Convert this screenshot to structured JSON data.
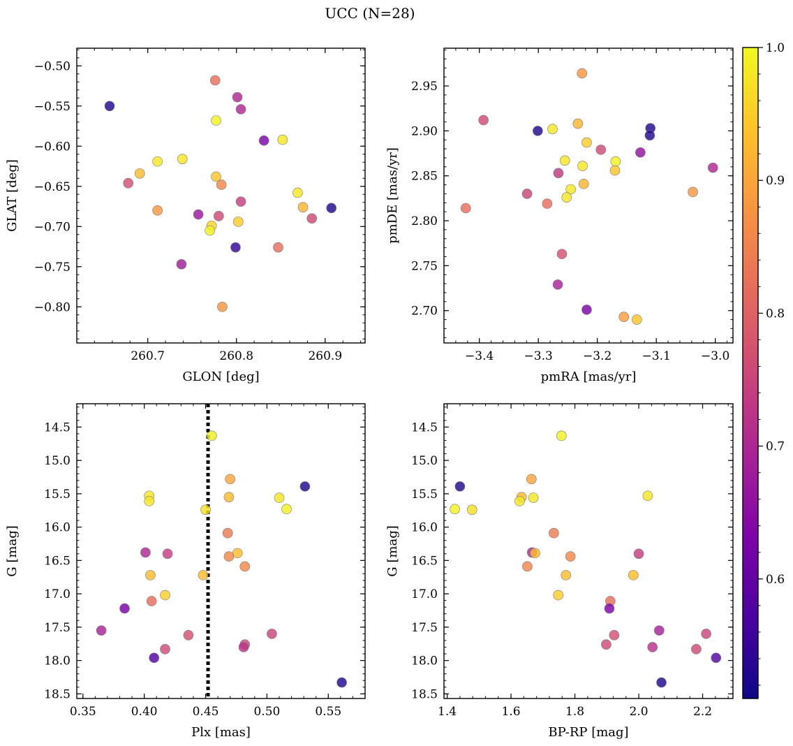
{
  "figure": {
    "title": "UCC (N=28)"
  },
  "colorbar": {
    "colormap": "plasma",
    "range": [
      0.51,
      1.0
    ],
    "ticks": [
      0.6,
      0.7,
      0.8,
      0.9,
      1.0
    ],
    "tick_labels": [
      "0.6",
      "0.7",
      "0.8",
      "0.9",
      "1.0"
    ],
    "label": ""
  },
  "chart_data": [
    {
      "type": "scatter",
      "title": "",
      "xlabel": "GLON [deg]",
      "ylabel": "GLAT [deg]",
      "xlim": [
        260.62,
        260.945
      ],
      "ylim": [
        -0.845,
        -0.478
      ],
      "y_inverted": false,
      "xticks": [
        260.7,
        260.8,
        260.9
      ],
      "xtick_labels": [
        "260.7",
        "260.8",
        "260.9"
      ],
      "yticks": [
        -0.8,
        -0.75,
        -0.7,
        -0.65,
        -0.6,
        -0.55,
        -0.5
      ],
      "ytick_labels": [
        "−0.80",
        "−0.75",
        "−0.70",
        "−0.65",
        "−0.60",
        "−0.55",
        "−0.50"
      ],
      "points": [
        {
          "x": 260.657,
          "y": -0.55,
          "c": 0.53
        },
        {
          "x": 260.776,
          "y": -0.518,
          "c": 0.82
        },
        {
          "x": 260.801,
          "y": -0.539,
          "c": 0.7
        },
        {
          "x": 260.805,
          "y": -0.554,
          "c": 0.7
        },
        {
          "x": 260.777,
          "y": -0.568,
          "c": 0.99
        },
        {
          "x": 260.831,
          "y": -0.593,
          "c": 0.63
        },
        {
          "x": 260.852,
          "y": -0.592,
          "c": 0.98
        },
        {
          "x": 260.739,
          "y": -0.616,
          "c": 0.98
        },
        {
          "x": 260.711,
          "y": -0.619,
          "c": 0.98
        },
        {
          "x": 260.691,
          "y": -0.634,
          "c": 0.93
        },
        {
          "x": 260.777,
          "y": -0.638,
          "c": 0.94
        },
        {
          "x": 260.678,
          "y": -0.646,
          "c": 0.77
        },
        {
          "x": 260.783,
          "y": -0.648,
          "c": 0.86
        },
        {
          "x": 260.869,
          "y": -0.658,
          "c": 0.98
        },
        {
          "x": 260.805,
          "y": -0.669,
          "c": 0.74
        },
        {
          "x": 260.875,
          "y": -0.676,
          "c": 0.92
        },
        {
          "x": 260.907,
          "y": -0.677,
          "c": 0.53
        },
        {
          "x": 260.711,
          "y": -0.68,
          "c": 0.88
        },
        {
          "x": 260.757,
          "y": -0.685,
          "c": 0.67
        },
        {
          "x": 260.78,
          "y": -0.687,
          "c": 0.76
        },
        {
          "x": 260.885,
          "y": -0.69,
          "c": 0.76
        },
        {
          "x": 260.802,
          "y": -0.694,
          "c": 0.95
        },
        {
          "x": 260.772,
          "y": -0.699,
          "c": 0.96
        },
        {
          "x": 260.77,
          "y": -0.705,
          "c": 0.99
        },
        {
          "x": 260.799,
          "y": -0.726,
          "c": 0.55
        },
        {
          "x": 260.847,
          "y": -0.726,
          "c": 0.82
        },
        {
          "x": 260.738,
          "y": -0.747,
          "c": 0.68
        },
        {
          "x": 260.784,
          "y": -0.8,
          "c": 0.88
        }
      ]
    },
    {
      "type": "scatter",
      "title": "",
      "xlabel": "pmRA [mas/yr]",
      "ylabel": "pmDE [mas/yr]",
      "xlim": [
        -3.46,
        -2.97
      ],
      "ylim": [
        2.664,
        2.992
      ],
      "y_inverted": false,
      "xticks": [
        -3.4,
        -3.3,
        -3.2,
        -3.1,
        -3.0
      ],
      "xtick_labels": [
        "−3.4",
        "−3.3",
        "−3.2",
        "−3.1",
        "−3.0"
      ],
      "yticks": [
        2.7,
        2.75,
        2.8,
        2.85,
        2.9,
        2.95
      ],
      "ytick_labels": [
        "2.70",
        "2.75",
        "2.80",
        "2.85",
        "2.90",
        "2.95"
      ],
      "points": [
        {
          "x": -3.226,
          "y": 2.964,
          "c": 0.88
        },
        {
          "x": -3.393,
          "y": 2.912,
          "c": 0.76
        },
        {
          "x": -3.233,
          "y": 2.908,
          "c": 0.92
        },
        {
          "x": -3.11,
          "y": 2.903,
          "c": 0.53
        },
        {
          "x": -3.276,
          "y": 2.902,
          "c": 0.98
        },
        {
          "x": -3.301,
          "y": 2.9,
          "c": 0.53
        },
        {
          "x": -3.111,
          "y": 2.895,
          "c": 0.53
        },
        {
          "x": -3.218,
          "y": 2.887,
          "c": 0.95
        },
        {
          "x": -3.194,
          "y": 2.879,
          "c": 0.76
        },
        {
          "x": -3.127,
          "y": 2.876,
          "c": 0.66
        },
        {
          "x": -3.255,
          "y": 2.867,
          "c": 0.98
        },
        {
          "x": -3.169,
          "y": 2.866,
          "c": 0.99
        },
        {
          "x": -3.225,
          "y": 2.861,
          "c": 0.98
        },
        {
          "x": -3.004,
          "y": 2.859,
          "c": 0.7
        },
        {
          "x": -3.17,
          "y": 2.856,
          "c": 0.94
        },
        {
          "x": -3.266,
          "y": 2.853,
          "c": 0.73
        },
        {
          "x": -3.223,
          "y": 2.841,
          "c": 0.92
        },
        {
          "x": -3.245,
          "y": 2.835,
          "c": 0.98
        },
        {
          "x": -3.038,
          "y": 2.832,
          "c": 0.88
        },
        {
          "x": -3.319,
          "y": 2.83,
          "c": 0.75
        },
        {
          "x": -3.252,
          "y": 2.826,
          "c": 0.98
        },
        {
          "x": -3.285,
          "y": 2.819,
          "c": 0.82
        },
        {
          "x": -3.423,
          "y": 2.814,
          "c": 0.82
        },
        {
          "x": -3.26,
          "y": 2.763,
          "c": 0.77
        },
        {
          "x": -3.267,
          "y": 2.729,
          "c": 0.69
        },
        {
          "x": -3.218,
          "y": 2.701,
          "c": 0.63
        },
        {
          "x": -3.155,
          "y": 2.693,
          "c": 0.89
        },
        {
          "x": -3.133,
          "y": 2.69,
          "c": 0.94
        }
      ]
    },
    {
      "type": "scatter",
      "title": "",
      "xlabel": "Plx [mas]",
      "ylabel": "G [mag]",
      "xlim": [
        0.345,
        0.58
      ],
      "ylim": [
        18.57,
        14.15
      ],
      "y_inverted": true,
      "xticks": [
        0.35,
        0.4,
        0.45,
        0.5,
        0.55
      ],
      "xtick_labels": [
        "0.35",
        "0.40",
        "0.45",
        "0.50",
        "0.55"
      ],
      "yticks": [
        14.5,
        15.0,
        15.5,
        16.0,
        16.5,
        17.0,
        17.5,
        18.0,
        18.5
      ],
      "ytick_labels": [
        "14.5",
        "15.0",
        "15.5",
        "16.0",
        "16.5",
        "17.0",
        "17.5",
        "18.0",
        "18.5"
      ],
      "vline": {
        "x": 0.452,
        "style": "dotted"
      },
      "points": [
        {
          "x": 0.455,
          "y": 14.63,
          "c": 0.99
        },
        {
          "x": 0.47,
          "y": 15.28,
          "c": 0.9
        },
        {
          "x": 0.531,
          "y": 15.39,
          "c": 0.53
        },
        {
          "x": 0.404,
          "y": 15.53,
          "c": 0.98
        },
        {
          "x": 0.469,
          "y": 15.55,
          "c": 0.93
        },
        {
          "x": 0.51,
          "y": 15.56,
          "c": 0.98
        },
        {
          "x": 0.404,
          "y": 15.61,
          "c": 0.98
        },
        {
          "x": 0.516,
          "y": 15.73,
          "c": 0.99
        },
        {
          "x": 0.45,
          "y": 15.74,
          "c": 0.97
        },
        {
          "x": 0.468,
          "y": 16.09,
          "c": 0.84
        },
        {
          "x": 0.401,
          "y": 16.38,
          "c": 0.7
        },
        {
          "x": 0.476,
          "y": 16.39,
          "c": 0.93
        },
        {
          "x": 0.419,
          "y": 16.4,
          "c": 0.74
        },
        {
          "x": 0.469,
          "y": 16.44,
          "c": 0.86
        },
        {
          "x": 0.482,
          "y": 16.59,
          "c": 0.86
        },
        {
          "x": 0.405,
          "y": 16.72,
          "c": 0.93
        },
        {
          "x": 0.448,
          "y": 16.72,
          "c": 0.93
        },
        {
          "x": 0.417,
          "y": 17.02,
          "c": 0.95
        },
        {
          "x": 0.406,
          "y": 17.11,
          "c": 0.82
        },
        {
          "x": 0.384,
          "y": 17.22,
          "c": 0.63
        },
        {
          "x": 0.365,
          "y": 17.55,
          "c": 0.69
        },
        {
          "x": 0.504,
          "y": 17.6,
          "c": 0.75
        },
        {
          "x": 0.436,
          "y": 17.62,
          "c": 0.77
        },
        {
          "x": 0.482,
          "y": 17.76,
          "c": 0.76
        },
        {
          "x": 0.481,
          "y": 17.8,
          "c": 0.72
        },
        {
          "x": 0.417,
          "y": 17.83,
          "c": 0.76
        },
        {
          "x": 0.408,
          "y": 17.96,
          "c": 0.58
        },
        {
          "x": 0.561,
          "y": 18.33,
          "c": 0.53
        }
      ]
    },
    {
      "type": "scatter",
      "title": "",
      "xlabel": "BP-RP [mag]",
      "ylabel": "G [mag]",
      "xlim": [
        1.39,
        2.295
      ],
      "ylim": [
        18.57,
        14.15
      ],
      "y_inverted": true,
      "xticks": [
        1.4,
        1.6,
        1.8,
        2.0,
        2.2
      ],
      "xtick_labels": [
        "1.4",
        "1.6",
        "1.8",
        "2.0",
        "2.2"
      ],
      "yticks": [
        14.5,
        15.0,
        15.5,
        16.0,
        16.5,
        17.0,
        17.5,
        18.0,
        18.5
      ],
      "ytick_labels": [
        "14.5",
        "15.0",
        "15.5",
        "16.0",
        "16.5",
        "17.0",
        "17.5",
        "18.0",
        "18.5"
      ],
      "points": [
        {
          "x": 1.758,
          "y": 14.63,
          "c": 0.99
        },
        {
          "x": 1.664,
          "y": 15.28,
          "c": 0.9
        },
        {
          "x": 1.44,
          "y": 15.39,
          "c": 0.53
        },
        {
          "x": 2.028,
          "y": 15.53,
          "c": 0.98
        },
        {
          "x": 1.633,
          "y": 15.55,
          "c": 0.93
        },
        {
          "x": 1.67,
          "y": 15.56,
          "c": 0.98
        },
        {
          "x": 1.627,
          "y": 15.61,
          "c": 0.98
        },
        {
          "x": 1.424,
          "y": 15.73,
          "c": 0.99
        },
        {
          "x": 1.478,
          "y": 15.74,
          "c": 0.97
        },
        {
          "x": 1.734,
          "y": 16.09,
          "c": 0.84
        },
        {
          "x": 1.666,
          "y": 16.38,
          "c": 0.7
        },
        {
          "x": 1.675,
          "y": 16.39,
          "c": 0.93
        },
        {
          "x": 2.0,
          "y": 16.4,
          "c": 0.74
        },
        {
          "x": 1.786,
          "y": 16.44,
          "c": 0.86
        },
        {
          "x": 1.651,
          "y": 16.59,
          "c": 0.86
        },
        {
          "x": 1.772,
          "y": 16.72,
          "c": 0.93
        },
        {
          "x": 1.983,
          "y": 16.72,
          "c": 0.93
        },
        {
          "x": 1.748,
          "y": 17.02,
          "c": 0.95
        },
        {
          "x": 1.911,
          "y": 17.11,
          "c": 0.82
        },
        {
          "x": 1.908,
          "y": 17.22,
          "c": 0.63
        },
        {
          "x": 2.064,
          "y": 17.55,
          "c": 0.69
        },
        {
          "x": 2.211,
          "y": 17.6,
          "c": 0.75
        },
        {
          "x": 1.923,
          "y": 17.62,
          "c": 0.77
        },
        {
          "x": 1.898,
          "y": 17.76,
          "c": 0.76
        },
        {
          "x": 2.043,
          "y": 17.8,
          "c": 0.72
        },
        {
          "x": 2.18,
          "y": 17.83,
          "c": 0.76
        },
        {
          "x": 2.242,
          "y": 17.96,
          "c": 0.58
        },
        {
          "x": 2.071,
          "y": 18.33,
          "c": 0.53
        }
      ]
    }
  ]
}
